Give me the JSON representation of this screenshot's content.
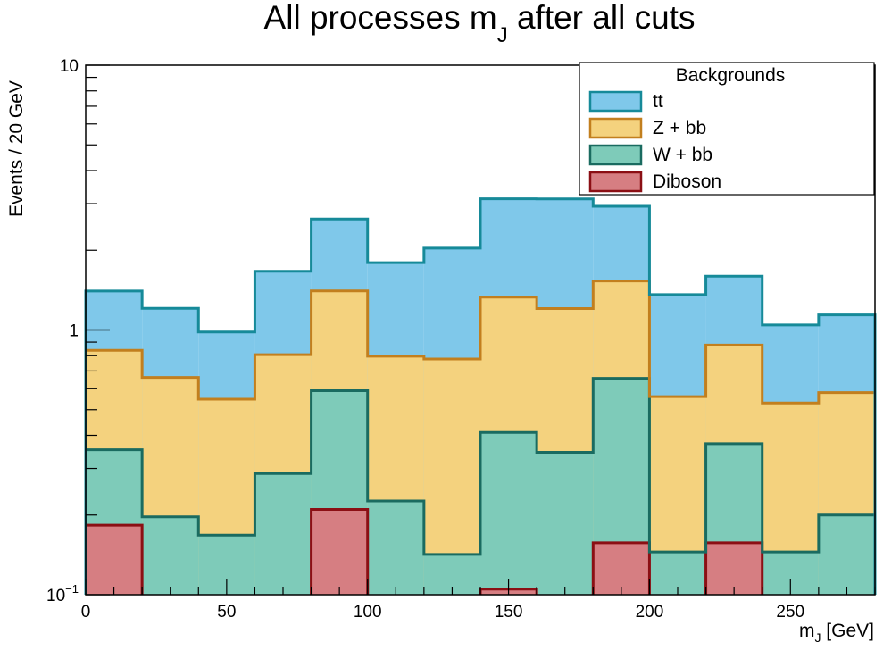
{
  "chart_data": {
    "type": "bar",
    "stacked": true,
    "title": {
      "main": "All processes m",
      "sub": "J",
      "rest": " after all cuts"
    },
    "xlabel": {
      "main": "m",
      "sub": "J",
      "rest": " [GeV]"
    },
    "ylabel": "Events / 20 GeV",
    "yscale": "log",
    "xlim": [
      0,
      280
    ],
    "ylim": [
      0.1,
      10
    ],
    "x_ticks": [
      0,
      50,
      100,
      150,
      200,
      250
    ],
    "y_ticks": [
      {
        "value": 10,
        "label": "10"
      },
      {
        "value": 1,
        "label": "1"
      },
      {
        "value": 0.1,
        "label": "10",
        "sup": "−1"
      }
    ],
    "bin_edges": [
      0,
      20,
      40,
      60,
      80,
      100,
      120,
      140,
      160,
      180,
      200,
      220,
      240,
      260,
      280
    ],
    "legend": {
      "title": "Backgrounds",
      "position": "top-right"
    },
    "series": [
      {
        "name": "Diboson",
        "fill": "#d67e82",
        "stroke": "#8b0f14",
        "values": [
          0.183,
          0,
          0,
          0,
          0.21,
          0,
          0,
          0.105,
          0,
          0.157,
          0,
          0.157,
          0,
          0
        ]
      },
      {
        "name": "W + bb",
        "fill": "#7ecbb9",
        "stroke": "#1a6b60",
        "values": [
          0.17,
          0.197,
          0.168,
          0.287,
          0.38,
          0.226,
          0.142,
          0.305,
          0.345,
          0.5,
          0.145,
          0.215,
          0.145,
          0.2
        ]
      },
      {
        "name": "Z + bb",
        "fill": "#f4d27e",
        "stroke": "#c27f1e",
        "values": [
          0.485,
          0.465,
          0.38,
          0.52,
          0.815,
          0.57,
          0.635,
          0.92,
          0.86,
          0.875,
          0.415,
          0.505,
          0.385,
          0.38
        ]
      },
      {
        "name": "tt",
        "fill": "#7fc8ea",
        "stroke": "#168a99",
        "values": [
          0.565,
          0.545,
          0.435,
          0.86,
          1.22,
          1.0,
          1.26,
          1.8,
          1.92,
          1.4,
          0.8,
          0.72,
          0.515,
          0.56
        ]
      }
    ]
  }
}
